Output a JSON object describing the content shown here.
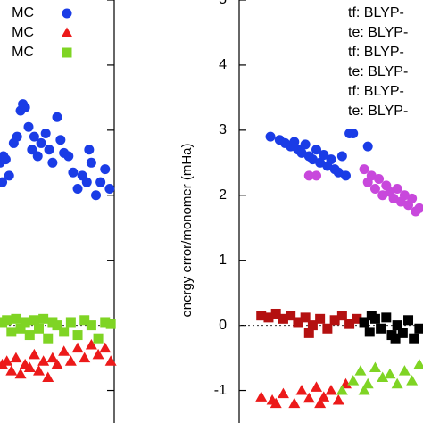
{
  "chart_data": [
    {
      "type": "scatter",
      "ylim": [
        -1.5,
        5
      ],
      "yticks": [
        -1,
        0,
        1,
        2,
        3,
        4,
        5
      ],
      "xlim": [
        0,
        100
      ],
      "series": [
        {
          "name": "MC",
          "color": "#1a3ce6",
          "marker": "circle",
          "x": [
            0,
            3,
            5,
            8,
            12,
            15,
            18,
            20,
            22,
            25,
            28,
            30,
            33,
            36,
            40,
            43,
            46,
            50,
            53,
            56,
            60,
            64,
            68,
            72,
            76,
            80,
            84,
            88,
            92,
            96,
            2,
            78
          ],
          "values": [
            2.5,
            2.6,
            2.55,
            2.3,
            2.8,
            2.9,
            3.3,
            3.4,
            3.35,
            3.05,
            2.7,
            2.9,
            2.6,
            2.8,
            2.95,
            2.7,
            2.5,
            3.2,
            2.85,
            2.65,
            2.6,
            2.35,
            2.1,
            2.3,
            2.2,
            2.5,
            2.0,
            2.2,
            2.4,
            2.1,
            2.2,
            2.7
          ]
        },
        {
          "name": "MC",
          "color": "#ec1a1a",
          "marker": "triangle",
          "x": [
            2,
            6,
            10,
            14,
            18,
            22,
            26,
            30,
            34,
            38,
            42,
            46,
            50,
            56,
            62,
            68,
            74,
            80,
            86,
            92,
            97
          ],
          "values": [
            -0.6,
            -0.55,
            -0.7,
            -0.5,
            -0.75,
            -0.6,
            -0.65,
            -0.45,
            -0.7,
            -0.55,
            -0.8,
            -0.5,
            -0.6,
            -0.4,
            -0.55,
            -0.35,
            -0.5,
            -0.3,
            -0.45,
            -0.35,
            -0.55
          ]
        },
        {
          "name": "MC",
          "color": "#7fd424",
          "marker": "square",
          "x": [
            2,
            6,
            10,
            14,
            18,
            22,
            26,
            30,
            34,
            38,
            42,
            46,
            50,
            56,
            62,
            68,
            74,
            80,
            86,
            92,
            97
          ],
          "values": [
            0.05,
            0.08,
            -0.1,
            0.1,
            -0.05,
            0.05,
            -0.15,
            0.08,
            -0.05,
            0.1,
            -0.2,
            0.05,
            0.0,
            -0.1,
            0.05,
            -0.15,
            0.08,
            0.0,
            -0.2,
            0.05,
            0.02
          ]
        }
      ]
    },
    {
      "type": "scatter",
      "ylabel": "energy error/monomer (mHa)",
      "ylim": [
        -1.5,
        5
      ],
      "yticks": [
        -1,
        0,
        1,
        2,
        3,
        4,
        5
      ],
      "xlim": [
        0,
        100
      ],
      "series": [
        {
          "name": "tf: BLYP-",
          "color": "#1a3ce6",
          "marker": "circle",
          "x": [
            17,
            22,
            25,
            28,
            30,
            32,
            34,
            36,
            38,
            40,
            42,
            44,
            46,
            48,
            50,
            52,
            54,
            56,
            58,
            60,
            62,
            70
          ],
          "values": [
            2.9,
            2.85,
            2.8,
            2.75,
            2.82,
            2.7,
            2.65,
            2.78,
            2.6,
            2.55,
            2.7,
            2.5,
            2.62,
            2.45,
            2.55,
            2.4,
            2.35,
            2.6,
            2.3,
            2.95,
            2.95,
            2.75
          ]
        },
        {
          "name": "te: BLYP-",
          "color": "#c848dc",
          "marker": "circle",
          "x": [
            38,
            42,
            68,
            70,
            72,
            74,
            76,
            78,
            80,
            82,
            84,
            86,
            88,
            90,
            92,
            94,
            96,
            98
          ],
          "values": [
            2.3,
            2.3,
            2.4,
            2.2,
            2.3,
            2.1,
            2.25,
            2.0,
            2.15,
            2.05,
            1.95,
            2.1,
            1.9,
            2.0,
            1.85,
            1.95,
            1.75,
            1.8
          ]
        },
        {
          "name": "tf: BLYP-",
          "color": "#b41010",
          "marker": "square",
          "x": [
            12,
            16,
            20,
            24,
            28,
            32,
            36,
            40,
            44,
            48,
            52,
            56,
            60,
            38,
            64
          ],
          "values": [
            0.15,
            0.12,
            0.18,
            0.1,
            0.15,
            0.05,
            0.12,
            0.0,
            0.1,
            -0.05,
            0.08,
            0.15,
            0.02,
            -0.12,
            0.1
          ]
        },
        {
          "name": "te: BLYP-",
          "color": "#000000",
          "marker": "square",
          "x": [
            68,
            71,
            74,
            77,
            80,
            83,
            86,
            89,
            92,
            95,
            98,
            72,
            85
          ],
          "values": [
            0.05,
            -0.1,
            0.1,
            -0.05,
            0.12,
            -0.15,
            0.0,
            -0.12,
            0.08,
            -0.2,
            -0.05,
            0.15,
            -0.2
          ]
        },
        {
          "name": "tf: BLYP-",
          "color": "#ec1a1a",
          "marker": "triangle",
          "x": [
            12,
            18,
            24,
            30,
            34,
            38,
            42,
            46,
            50,
            54,
            58,
            20,
            44
          ],
          "values": [
            -1.1,
            -1.15,
            -1.05,
            -1.2,
            -1.0,
            -1.12,
            -0.95,
            -1.1,
            -1.0,
            -1.15,
            -0.9,
            -1.2,
            -1.2
          ]
        },
        {
          "name": "te: BLYP-",
          "color": "#7fd424",
          "marker": "triangle",
          "x": [
            56,
            62,
            66,
            70,
            74,
            78,
            82,
            86,
            90,
            94,
            98,
            68
          ],
          "values": [
            -1.0,
            -0.85,
            -0.7,
            -0.9,
            -0.65,
            -0.8,
            -0.75,
            -0.9,
            -0.7,
            -0.85,
            -0.6,
            -1.0
          ]
        }
      ]
    }
  ]
}
